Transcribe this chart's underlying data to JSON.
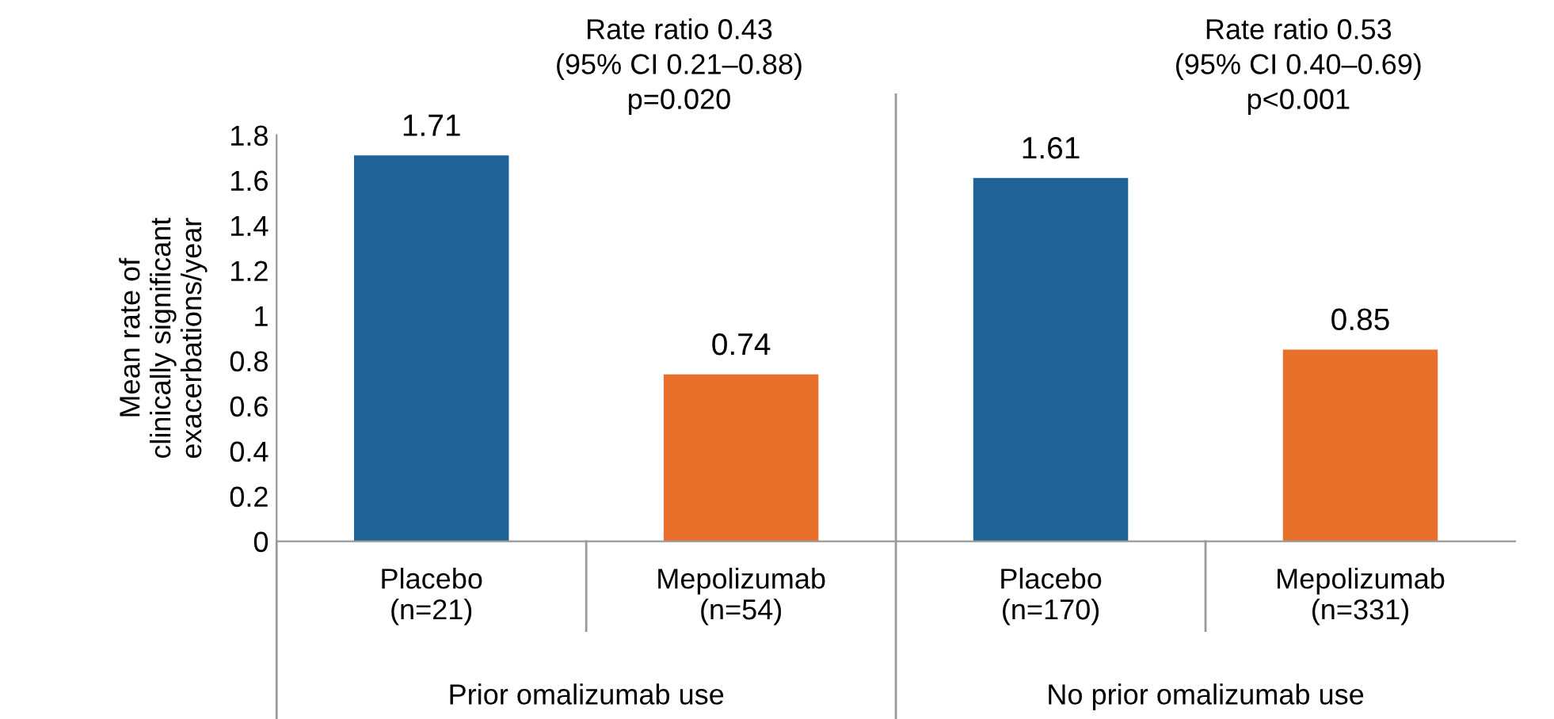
{
  "chart_data": {
    "type": "bar",
    "ylabel": "Mean rate of\nclinically significant\nexacerbations/year",
    "categories": [
      "Placebo\n(n=21)",
      "Mepolizumab\n(n=54)",
      "Placebo\n(n=170)",
      "Mepolizumab\n(n=331)"
    ],
    "values": [
      1.71,
      0.74,
      1.61,
      0.85
    ],
    "colors": [
      "#1f6396",
      "#e8702a",
      "#1f6396",
      "#e8702a"
    ],
    "ylim": [
      0,
      1.8
    ],
    "yticks": [
      0,
      0.2,
      0.4,
      0.6,
      0.8,
      1,
      1.2,
      1.4,
      1.6,
      1.8
    ],
    "data_labels": true,
    "grid": false,
    "legend": false,
    "annotations": [
      "Rate ratio 0.43\n(95% CI 0.21–0.88)\np=0.020",
      "Rate ratio 0.53\n(95% CI 0.40–0.69)\np<0.001",
      "Prior omalizumab use",
      "No prior omalizumab use"
    ]
  }
}
